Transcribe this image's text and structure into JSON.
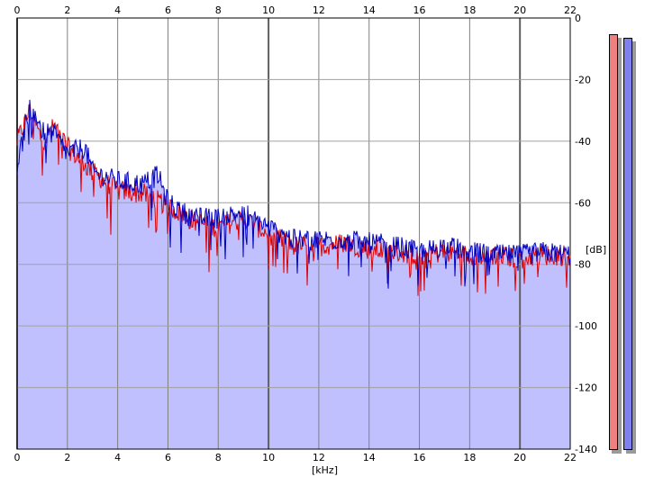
{
  "chart_data": {
    "type": "area",
    "xlabel": "[kHz]",
    "ylabel": "[dB]",
    "xlim": [
      0,
      22
    ],
    "ylim": [
      -140,
      0
    ],
    "x_ticks": [
      "0",
      "2",
      "4",
      "6",
      "8",
      "10",
      "12",
      "14",
      "16",
      "18",
      "20",
      "22"
    ],
    "y_ticks": [
      "0",
      "-20",
      "-40",
      "-60",
      "-80",
      "-100",
      "-120",
      "-140"
    ],
    "grid": true,
    "series": [
      {
        "color": "#e00000",
        "envelope": [
          [
            0.0,
            -40
          ],
          [
            0.5,
            -30
          ],
          [
            1.0,
            -40
          ],
          [
            1.5,
            -35
          ],
          [
            2.0,
            -42
          ],
          [
            3.0,
            -50
          ],
          [
            4.0,
            -56
          ],
          [
            5.0,
            -57
          ],
          [
            6.0,
            -61
          ],
          [
            7.0,
            -66
          ],
          [
            8.0,
            -68
          ],
          [
            9.0,
            -65
          ],
          [
            10.0,
            -70
          ],
          [
            11.0,
            -74
          ],
          [
            12.0,
            -74
          ],
          [
            13.0,
            -73
          ],
          [
            14.0,
            -75
          ],
          [
            15.0,
            -76
          ],
          [
            16.0,
            -77
          ],
          [
            17.0,
            -76
          ],
          [
            18.0,
            -77
          ],
          [
            19.0,
            -77
          ],
          [
            20.0,
            -78
          ],
          [
            21.0,
            -77
          ],
          [
            22.0,
            -77
          ]
        ]
      },
      {
        "color": "#0000c0",
        "envelope": [
          [
            0.0,
            -48
          ],
          [
            0.3,
            -36
          ],
          [
            0.6,
            -27
          ],
          [
            1.0,
            -37
          ],
          [
            1.5,
            -38
          ],
          [
            2.0,
            -44
          ],
          [
            2.7,
            -42
          ],
          [
            3.0,
            -50
          ],
          [
            4.0,
            -53
          ],
          [
            5.0,
            -54
          ],
          [
            5.6,
            -51
          ],
          [
            6.0,
            -60
          ],
          [
            7.0,
            -65
          ],
          [
            8.0,
            -65
          ],
          [
            9.0,
            -63
          ],
          [
            10.0,
            -68
          ],
          [
            11.0,
            -72
          ],
          [
            12.0,
            -72
          ],
          [
            13.0,
            -72
          ],
          [
            14.0,
            -73
          ],
          [
            15.0,
            -74
          ],
          [
            16.0,
            -76
          ],
          [
            17.0,
            -74
          ],
          [
            18.0,
            -76
          ],
          [
            19.0,
            -77
          ],
          [
            20.0,
            -77
          ],
          [
            21.0,
            -76
          ],
          [
            22.0,
            -77
          ]
        ]
      }
    ],
    "fill_color": "#c0c0ff",
    "level_meters": [
      {
        "channel": "left",
        "color": "#f08080",
        "level_db": 0
      },
      {
        "channel": "right",
        "color": "#8080f0",
        "level_db": 0
      }
    ]
  }
}
